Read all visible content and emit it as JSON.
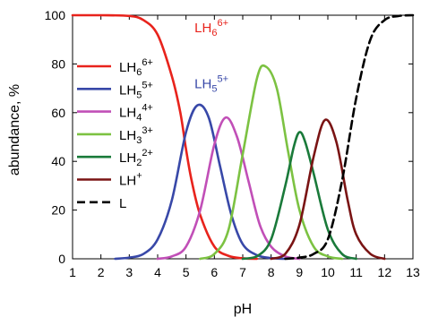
{
  "chart_data": {
    "type": "line",
    "xlabel": "pH",
    "ylabel": "abundance, %",
    "xlim": [
      1,
      13
    ],
    "ylim": [
      0,
      100
    ],
    "xticks": [
      "1",
      "2",
      "3",
      "4",
      "5",
      "6",
      "7",
      "8",
      "9",
      "10",
      "11",
      "12",
      "13"
    ],
    "yticks": [
      "0",
      "20",
      "40",
      "60",
      "80",
      "100"
    ],
    "grid": false,
    "legend_position": "left",
    "series": [
      {
        "base": "LH",
        "sub": "6",
        "sup": "6+",
        "color": "#e8231c",
        "dash": false,
        "x": [
          1,
          2,
          3,
          3.5,
          4,
          4.5,
          4.8,
          5,
          5.2,
          5.5,
          6,
          6.5,
          7,
          7.5
        ],
        "y": [
          100,
          100,
          99.7,
          98,
          92,
          75,
          60,
          45,
          32,
          18,
          5,
          1.2,
          0.2,
          0
        ]
      },
      {
        "base": "LH",
        "sub": "5",
        "sup": "5+",
        "color": "#3848a8",
        "dash": false,
        "x": [
          2.5,
          3,
          3.5,
          4,
          4.5,
          5,
          5.4,
          5.8,
          6.2,
          6.6,
          7,
          7.5,
          8,
          8.5
        ],
        "y": [
          0,
          0.5,
          2,
          8,
          24,
          52,
          63,
          58,
          38,
          18,
          6,
          1.5,
          0.3,
          0
        ]
      },
      {
        "base": "LH",
        "sub": "4",
        "sup": "4+",
        "color": "#c14fb7",
        "dash": false,
        "x": [
          4,
          4.5,
          5,
          5.5,
          6,
          6.4,
          6.8,
          7.2,
          7.6,
          8,
          8.5,
          9
        ],
        "y": [
          0,
          1,
          5,
          20,
          47,
          58,
          50,
          32,
          14,
          5,
          1,
          0
        ]
      },
      {
        "base": "LH",
        "sub": "3",
        "sup": "3+",
        "color": "#7cc242",
        "dash": false,
        "x": [
          5.5,
          6,
          6.5,
          7,
          7.5,
          7.8,
          8.2,
          8.6,
          9,
          9.5,
          10,
          10.5
        ],
        "y": [
          0,
          2,
          12,
          43,
          74,
          79,
          70,
          44,
          20,
          5,
          1,
          0
        ]
      },
      {
        "base": "LH",
        "sub": "2",
        "sup": "2+",
        "color": "#1a7a3a",
        "dash": false,
        "x": [
          7,
          7.5,
          8,
          8.5,
          8.8,
          9,
          9.2,
          9.5,
          10,
          10.5,
          11
        ],
        "y": [
          0,
          1,
          8,
          30,
          46,
          52,
          48,
          35,
          12,
          2,
          0
        ]
      },
      {
        "base": "LH",
        "sub": "",
        "sup": "+",
        "color": "#7a1414",
        "dash": false,
        "x": [
          8,
          8.5,
          9,
          9.5,
          9.9,
          10.3,
          10.7,
          11,
          11.5,
          12
        ],
        "y": [
          0,
          2,
          14,
          42,
          57,
          48,
          24,
          10,
          2,
          0
        ]
      },
      {
        "base": "L",
        "sub": "",
        "sup": "",
        "color": "#000000",
        "dash": true,
        "x": [
          8.5,
          9,
          9.5,
          10,
          10.5,
          11,
          11.5,
          12,
          12.5,
          13
        ],
        "y": [
          0,
          0.5,
          2,
          8,
          32,
          66,
          90,
          98,
          99.7,
          100
        ]
      }
    ],
    "annotations": [
      {
        "base": "LH",
        "sub": "6",
        "sup": "6+",
        "color": "#e8231c",
        "x": 5.3,
        "y": 93
      },
      {
        "base": "LH",
        "sub": "5",
        "sup": "5+",
        "color": "#3848a8",
        "x": 5.3,
        "y": 70
      }
    ]
  }
}
